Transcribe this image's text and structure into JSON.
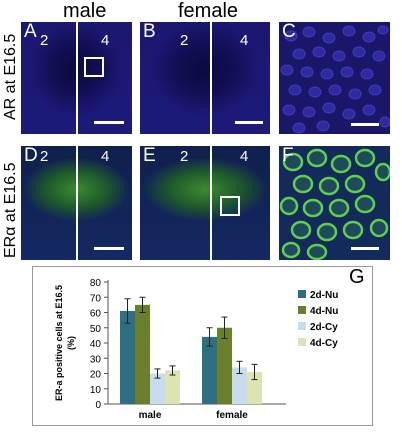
{
  "headers": {
    "male": "male",
    "female": "female"
  },
  "row_labels": {
    "ar": "AR at E16.5",
    "era": "ERα at E16.5"
  },
  "panels": {
    "A": {
      "label": "A",
      "left": "2",
      "right": "4"
    },
    "B": {
      "label": "B",
      "left": "2",
      "right": "4"
    },
    "C": {
      "label": "C"
    },
    "D": {
      "label": "D",
      "left": "2",
      "right": "4"
    },
    "E": {
      "label": "E",
      "left": "2",
      "right": "4"
    },
    "F": {
      "label": "F"
    },
    "G": {
      "label": "G"
    }
  },
  "colors": {
    "2d-Nu": "#2e6f82",
    "4d-Nu": "#6a7f2b",
    "2d-Cy": "#c9dcee",
    "4d-Cy": "#dbe4b2"
  },
  "chart_data": {
    "type": "bar",
    "categories": [
      "male",
      "female"
    ],
    "ylabel": "ER-a positive cells at E16.5 (%)",
    "ylim": [
      0,
      80
    ],
    "yticks": [
      0,
      10,
      20,
      30,
      40,
      50,
      60,
      70,
      80
    ],
    "grid": false,
    "legend": "right",
    "series": [
      {
        "name": "2d-Nu",
        "values": [
          61,
          44
        ],
        "errors": [
          8,
          6
        ]
      },
      {
        "name": "4d-Nu",
        "values": [
          65,
          50
        ],
        "errors": [
          5,
          7
        ]
      },
      {
        "name": "2d-Cy",
        "values": [
          20,
          24
        ],
        "errors": [
          3,
          4
        ]
      },
      {
        "name": "4d-Cy",
        "values": [
          22,
          21
        ],
        "errors": [
          3,
          5
        ]
      }
    ]
  }
}
